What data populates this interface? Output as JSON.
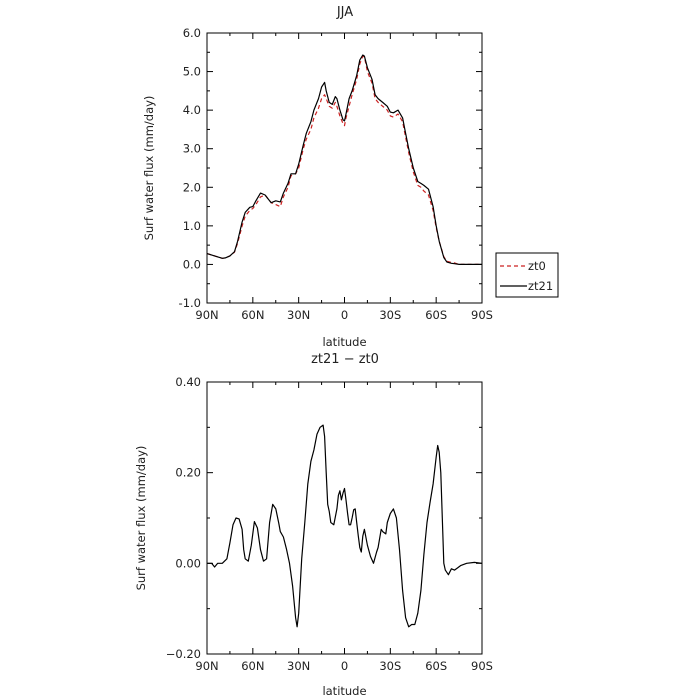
{
  "chart_data": [
    {
      "type": "line",
      "title": "JJA",
      "xlabel": "latitude",
      "ylabel": "Surf water flux (mm/day)",
      "xlim": [
        -90,
        90
      ],
      "ylim": [
        -1.0,
        6.0
      ],
      "x_ticks": [
        -90,
        -60,
        -30,
        0,
        30,
        60,
        90
      ],
      "x_tick_labels": [
        "90N",
        "60N",
        "30N",
        "0",
        "30S",
        "60S",
        "90S"
      ],
      "y_ticks": [
        -1,
        0,
        1,
        2,
        3,
        4,
        5,
        6
      ],
      "y_tick_labels": [
        "-1.0",
        "0.0",
        "1.0",
        "2.0",
        "3.0",
        "4.0",
        "5.0",
        "6.0"
      ],
      "grid": false,
      "legend_position": "outside-right",
      "series": [
        {
          "name": "zt0",
          "color": "#cc2222",
          "dash": "dashed",
          "x": [
            -90,
            -85,
            -80,
            -78,
            -75,
            -72,
            -70,
            -67,
            -65,
            -62,
            -60,
            -58,
            -55,
            -52,
            -50,
            -48,
            -45,
            -42,
            -40,
            -37,
            -35,
            -32,
            -30,
            -27,
            -25,
            -22,
            -20,
            -17,
            -15,
            -13,
            -12,
            -10,
            -8,
            -6,
            -5,
            -3,
            -1,
            0,
            1,
            3,
            5,
            8,
            10,
            12,
            13,
            15,
            18,
            20,
            22,
            25,
            28,
            30,
            32,
            35,
            38,
            40,
            42,
            45,
            48,
            50,
            52,
            55,
            58,
            60,
            62,
            65,
            67,
            70,
            72,
            75,
            78,
            80,
            82,
            85,
            88,
            90
          ],
          "values": [
            0.28,
            0.22,
            0.16,
            0.17,
            0.22,
            0.32,
            0.55,
            1.0,
            1.25,
            1.4,
            1.45,
            1.55,
            1.75,
            1.8,
            1.7,
            1.6,
            1.55,
            1.5,
            1.75,
            2.0,
            2.3,
            2.35,
            2.5,
            3.0,
            3.25,
            3.5,
            3.8,
            4.05,
            4.3,
            4.4,
            4.3,
            4.1,
            4.05,
            4.2,
            4.1,
            3.85,
            3.65,
            3.6,
            3.8,
            4.1,
            4.4,
            4.8,
            5.2,
            5.4,
            5.38,
            5.0,
            4.7,
            4.3,
            4.2,
            4.1,
            4.0,
            3.85,
            3.82,
            3.9,
            3.7,
            3.3,
            2.9,
            2.4,
            2.05,
            2.0,
            1.9,
            1.8,
            1.4,
            0.95,
            0.6,
            0.2,
            0.08,
            0.05,
            0.04,
            0.0,
            0.0,
            0.0,
            0.0,
            0.0,
            0.0,
            0.0
          ]
        },
        {
          "name": "zt21",
          "color": "#000000",
          "dash": "solid",
          "x": [
            -90,
            -85,
            -80,
            -78,
            -75,
            -72,
            -70,
            -67,
            -65,
            -62,
            -60,
            -58,
            -55,
            -52,
            -50,
            -48,
            -45,
            -42,
            -40,
            -37,
            -35,
            -32,
            -30,
            -27,
            -25,
            -22,
            -20,
            -17,
            -15,
            -13,
            -12,
            -10,
            -8,
            -6,
            -5,
            -3,
            -1,
            0,
            1,
            3,
            5,
            8,
            10,
            12,
            13,
            15,
            18,
            20,
            22,
            25,
            28,
            30,
            32,
            35,
            38,
            40,
            42,
            45,
            48,
            50,
            52,
            55,
            58,
            60,
            62,
            65,
            67,
            70,
            72,
            75,
            78,
            80,
            82,
            85,
            88,
            90
          ],
          "values": [
            0.28,
            0.22,
            0.16,
            0.17,
            0.22,
            0.33,
            0.6,
            1.1,
            1.35,
            1.48,
            1.5,
            1.65,
            1.85,
            1.8,
            1.7,
            1.6,
            1.65,
            1.62,
            1.85,
            2.1,
            2.35,
            2.35,
            2.6,
            3.1,
            3.4,
            3.7,
            4.0,
            4.3,
            4.6,
            4.72,
            4.5,
            4.2,
            4.15,
            4.35,
            4.3,
            4.0,
            3.75,
            3.72,
            3.9,
            4.3,
            4.5,
            4.9,
            5.3,
            5.43,
            5.4,
            5.1,
            4.8,
            4.4,
            4.3,
            4.2,
            4.1,
            3.95,
            3.93,
            4.0,
            3.8,
            3.4,
            3.0,
            2.5,
            2.15,
            2.1,
            2.05,
            1.95,
            1.5,
            1.0,
            0.6,
            0.18,
            0.06,
            0.03,
            0.02,
            0.0,
            0.0,
            0.0,
            0.0,
            0.0,
            0.0,
            0.0
          ]
        }
      ]
    },
    {
      "type": "line",
      "title": "zt21 − zt0",
      "xlabel": "latitude",
      "ylabel": "Surf water flux (mm/day)",
      "xlim": [
        -90,
        90
      ],
      "ylim": [
        -0.2,
        0.4
      ],
      "x_ticks": [
        -90,
        -60,
        -30,
        0,
        30,
        60,
        90
      ],
      "x_tick_labels": [
        "90N",
        "60N",
        "30N",
        "0",
        "30S",
        "60S",
        "90S"
      ],
      "y_ticks": [
        -0.2,
        0.0,
        0.2,
        0.4
      ],
      "y_tick_labels": [
        "−0.20",
        "0.00",
        "0.20",
        "0.40"
      ],
      "grid": false,
      "series": [
        {
          "name": "",
          "color": "#000000",
          "dash": "solid",
          "x": [
            -90,
            -87,
            -85,
            -83,
            -80,
            -77,
            -75,
            -73,
            -71,
            -69,
            -67,
            -66,
            -65,
            -63,
            -61,
            -59,
            -57,
            -55,
            -53,
            -51,
            -49,
            -47,
            -45,
            -43,
            -42,
            -40,
            -38,
            -36,
            -34,
            -32,
            -31,
            -30,
            -29,
            -28,
            -26,
            -24,
            -22,
            -20,
            -18,
            -16,
            -14,
            -13,
            -12,
            -11,
            -10,
            -9,
            -7,
            -5,
            -4,
            -3,
            -2,
            -1,
            0,
            1,
            2,
            3,
            4,
            5,
            6,
            7,
            8,
            9,
            10,
            11,
            12,
            13,
            15,
            17,
            19,
            21,
            22,
            24,
            25,
            27,
            28,
            30,
            32,
            34,
            36,
            38,
            40,
            42,
            44,
            46,
            48,
            50,
            52,
            54,
            56,
            58,
            60,
            61,
            62,
            63,
            64,
            65,
            66,
            68,
            70,
            72,
            74,
            76,
            80,
            85,
            90
          ],
          "values": [
            0.0,
            0.0,
            -0.008,
            0.0,
            0.0,
            0.01,
            0.045,
            0.085,
            0.1,
            0.098,
            0.075,
            0.03,
            0.01,
            0.005,
            0.04,
            0.092,
            0.078,
            0.03,
            0.005,
            0.01,
            0.09,
            0.13,
            0.12,
            0.088,
            0.07,
            0.058,
            0.032,
            0.0,
            -0.05,
            -0.12,
            -0.14,
            -0.11,
            -0.05,
            0.01,
            0.09,
            0.175,
            0.225,
            0.25,
            0.285,
            0.3,
            0.305,
            0.28,
            0.2,
            0.13,
            0.115,
            0.09,
            0.085,
            0.12,
            0.15,
            0.16,
            0.14,
            0.155,
            0.165,
            0.14,
            0.11,
            0.085,
            0.085,
            0.1,
            0.118,
            0.12,
            0.09,
            0.06,
            0.035,
            0.025,
            0.06,
            0.075,
            0.04,
            0.015,
            0.0,
            0.025,
            0.035,
            0.075,
            0.07,
            0.065,
            0.09,
            0.11,
            0.12,
            0.1,
            0.03,
            -0.06,
            -0.12,
            -0.14,
            -0.135,
            -0.135,
            -0.11,
            -0.06,
            0.02,
            0.09,
            0.135,
            0.175,
            0.235,
            0.26,
            0.245,
            0.2,
            0.1,
            0.0,
            -0.015,
            -0.025,
            -0.012,
            -0.015,
            -0.01,
            -0.005,
            0.0,
            0.002,
            0.0
          ]
        }
      ]
    }
  ]
}
